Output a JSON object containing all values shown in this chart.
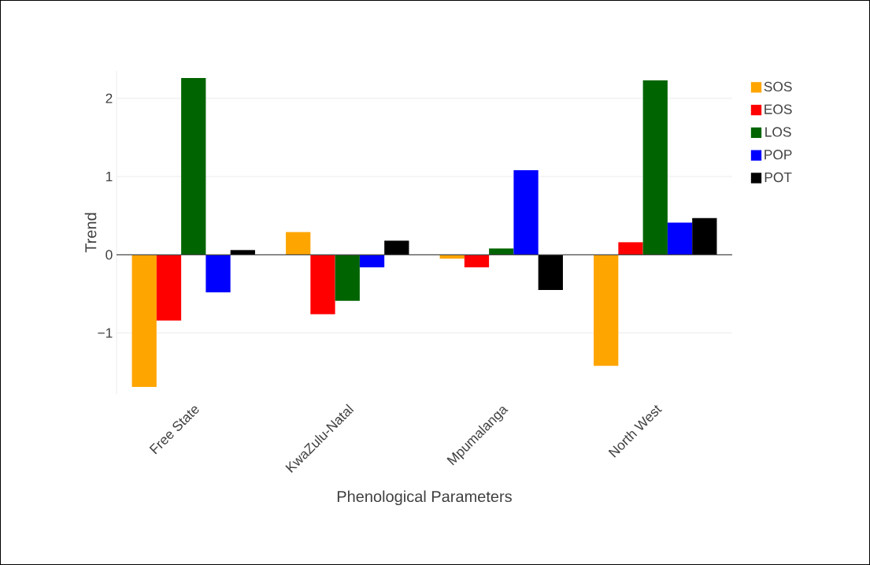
{
  "chart_data": {
    "type": "bar",
    "xlabel": "Phenological Parameters",
    "ylabel": "Trend",
    "categories": [
      "Free State",
      "KwaZulu-Natal",
      "Mpumalanga",
      "North West"
    ],
    "series": [
      {
        "name": "SOS",
        "color": "#ffa500",
        "values": [
          -1.69,
          0.29,
          -0.05,
          -1.42
        ]
      },
      {
        "name": "EOS",
        "color": "#ff0000",
        "values": [
          -0.84,
          -0.76,
          -0.16,
          0.16
        ]
      },
      {
        "name": "LOS",
        "color": "#006400",
        "values": [
          2.26,
          -0.59,
          0.08,
          2.23
        ]
      },
      {
        "name": "POP",
        "color": "#0000ff",
        "values": [
          -0.48,
          -0.16,
          1.08,
          0.41
        ]
      },
      {
        "name": "POT",
        "color": "#000000",
        "values": [
          0.06,
          0.18,
          -0.45,
          0.47
        ]
      }
    ],
    "ylim": [
      -1.78,
      2.35
    ],
    "yticks": [
      {
        "value": -1,
        "label": "−1"
      },
      0,
      1,
      2
    ],
    "grid": "y",
    "legend": "top right"
  }
}
